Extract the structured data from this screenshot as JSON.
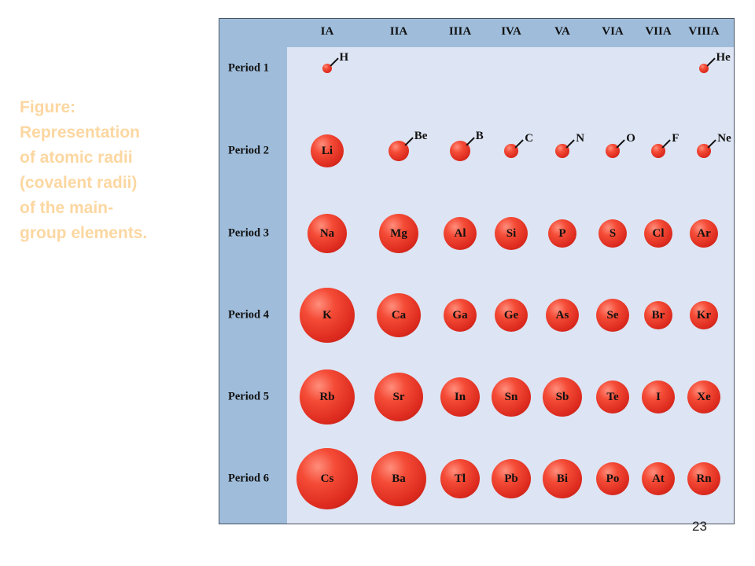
{
  "caption": "Figure:\nRepresentation\nof atomic radii\n(covalent radii)\nof the main-\ngroup elements.",
  "page_number": "23",
  "groups": [
    "IA",
    "IIA",
    "IIIA",
    "IVA",
    "VA",
    "VIA",
    "VIIA",
    "VIIIA"
  ],
  "periods": [
    {
      "label": "Period 1",
      "elements": [
        {
          "symbol": "H",
          "group": 0,
          "size": "s1",
          "label_outside": true
        },
        {
          "symbol": "He",
          "group": 7,
          "size": "s1",
          "label_outside": true
        }
      ]
    },
    {
      "label": "Period 2",
      "elements": [
        {
          "symbol": "Li",
          "group": 0,
          "size": "s5",
          "label_outside": false
        },
        {
          "symbol": "Be",
          "group": 1,
          "size": "s3",
          "label_outside": true
        },
        {
          "symbol": "B",
          "group": 2,
          "size": "s3",
          "label_outside": true
        },
        {
          "symbol": "C",
          "group": 3,
          "size": "s2",
          "label_outside": true
        },
        {
          "symbol": "N",
          "group": 4,
          "size": "s2",
          "label_outside": true
        },
        {
          "symbol": "O",
          "group": 5,
          "size": "s2",
          "label_outside": true
        },
        {
          "symbol": "F",
          "group": 6,
          "size": "s2",
          "label_outside": true
        },
        {
          "symbol": "Ne",
          "group": 7,
          "size": "s2",
          "label_outside": true
        }
      ]
    },
    {
      "label": "Period 3",
      "elements": [
        {
          "symbol": "Na",
          "group": 0,
          "size": "s6",
          "label_outside": false
        },
        {
          "symbol": "Mg",
          "group": 1,
          "size": "s6",
          "label_outside": false
        },
        {
          "symbol": "Al",
          "group": 2,
          "size": "s5",
          "label_outside": false
        },
        {
          "symbol": "Si",
          "group": 3,
          "size": "s5",
          "label_outside": false
        },
        {
          "symbol": "P",
          "group": 4,
          "size": "s4",
          "label_outside": false
        },
        {
          "symbol": "S",
          "group": 5,
          "size": "s4",
          "label_outside": false
        },
        {
          "symbol": "Cl",
          "group": 6,
          "size": "s4",
          "label_outside": false
        },
        {
          "symbol": "Ar",
          "group": 7,
          "size": "s4",
          "label_outside": false
        }
      ]
    },
    {
      "label": "Period 4",
      "elements": [
        {
          "symbol": "K",
          "group": 0,
          "size": "s9",
          "label_outside": false
        },
        {
          "symbol": "Ca",
          "group": 1,
          "size": "s7",
          "label_outside": false
        },
        {
          "symbol": "Ga",
          "group": 2,
          "size": "s5",
          "label_outside": false
        },
        {
          "symbol": "Ge",
          "group": 3,
          "size": "s5",
          "label_outside": false
        },
        {
          "symbol": "As",
          "group": 4,
          "size": "s5",
          "label_outside": false
        },
        {
          "symbol": "Se",
          "group": 5,
          "size": "s5",
          "label_outside": false
        },
        {
          "symbol": "Br",
          "group": 6,
          "size": "s4",
          "label_outside": false
        },
        {
          "symbol": "Kr",
          "group": 7,
          "size": "s4",
          "label_outside": false
        }
      ]
    },
    {
      "label": "Period 5",
      "elements": [
        {
          "symbol": "Rb",
          "group": 0,
          "size": "s9",
          "label_outside": false
        },
        {
          "symbol": "Sr",
          "group": 1,
          "size": "s8",
          "label_outside": false
        },
        {
          "symbol": "In",
          "group": 2,
          "size": "s6",
          "label_outside": false
        },
        {
          "symbol": "Sn",
          "group": 3,
          "size": "s6",
          "label_outside": false
        },
        {
          "symbol": "Sb",
          "group": 4,
          "size": "s6",
          "label_outside": false
        },
        {
          "symbol": "Te",
          "group": 5,
          "size": "s5",
          "label_outside": false
        },
        {
          "symbol": "I",
          "group": 6,
          "size": "s5",
          "label_outside": false
        },
        {
          "symbol": "Xe",
          "group": 7,
          "size": "s5",
          "label_outside": false
        }
      ]
    },
    {
      "label": "Period 6",
      "elements": [
        {
          "symbol": "Cs",
          "group": 0,
          "size": "s10",
          "label_outside": false
        },
        {
          "symbol": "Ba",
          "group": 1,
          "size": "s9",
          "label_outside": false
        },
        {
          "symbol": "Tl",
          "group": 2,
          "size": "s6",
          "label_outside": false
        },
        {
          "symbol": "Pb",
          "group": 3,
          "size": "s6",
          "label_outside": false
        },
        {
          "symbol": "Bi",
          "group": 4,
          "size": "s6",
          "label_outside": false
        },
        {
          "symbol": "Po",
          "group": 5,
          "size": "s5",
          "label_outside": false
        },
        {
          "symbol": "At",
          "group": 6,
          "size": "s5",
          "label_outside": false
        },
        {
          "symbol": "Rn",
          "group": 7,
          "size": "s5",
          "label_outside": false
        }
      ]
    }
  ]
}
